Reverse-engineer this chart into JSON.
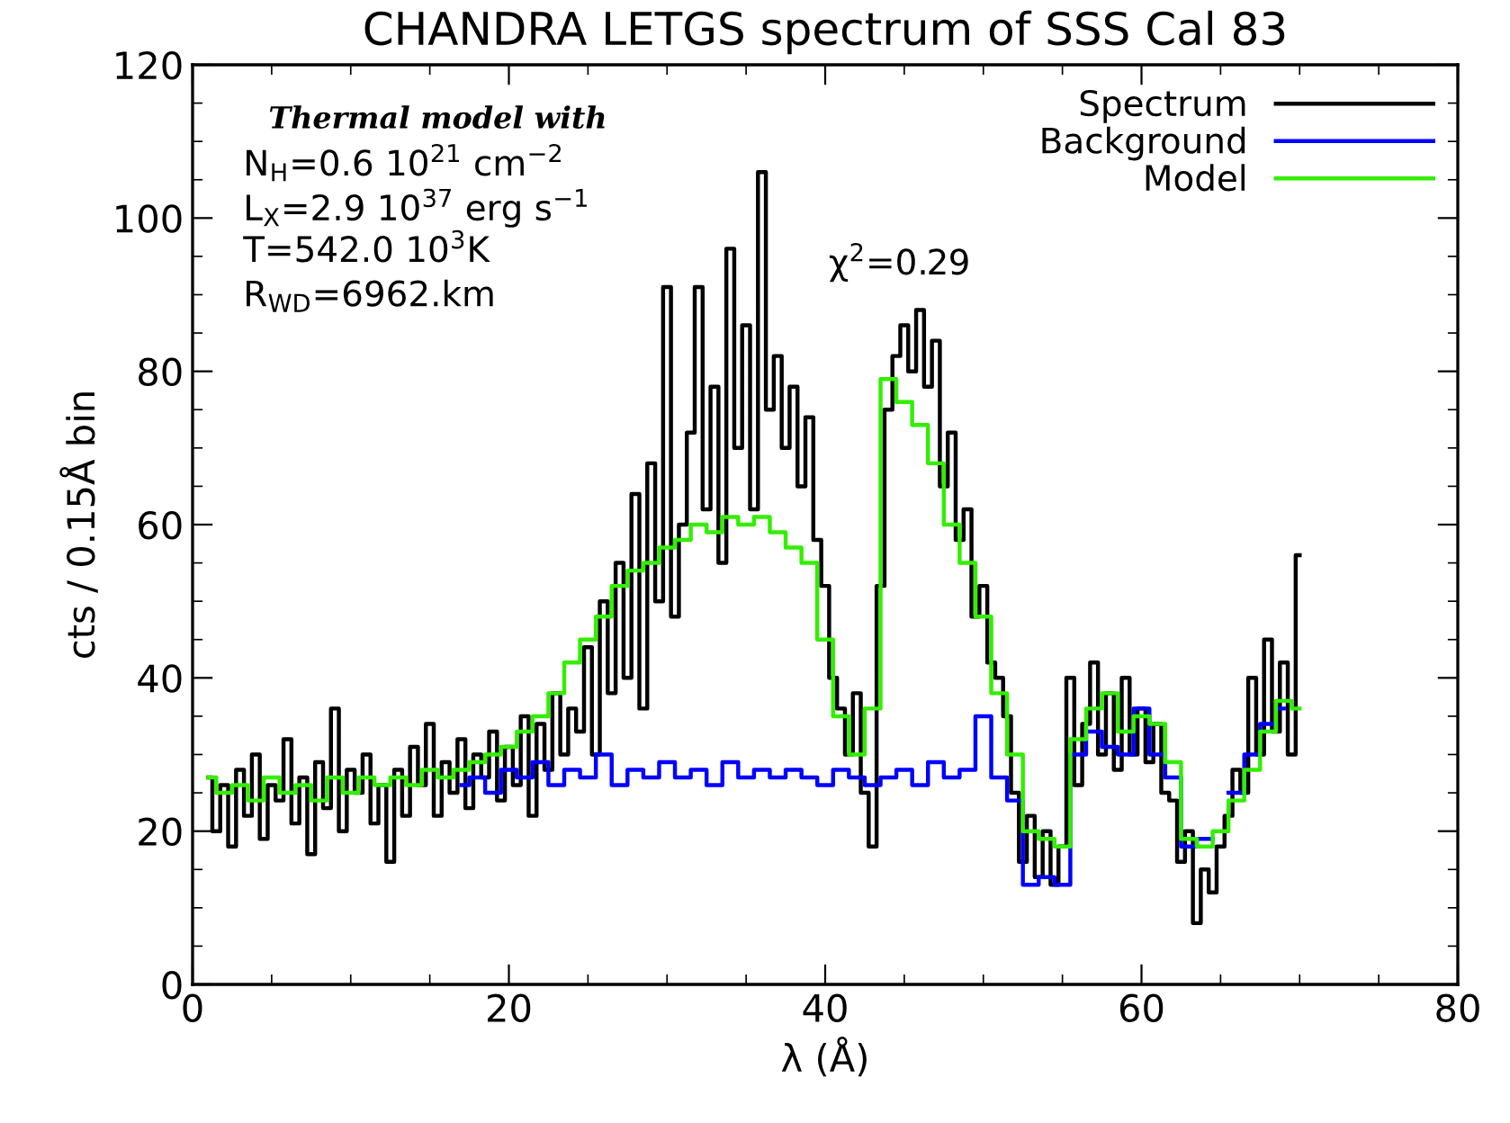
{
  "chart_data": {
    "type": "step",
    "title": "CHANDRA LETGS spectrum of SSS Cal 83",
    "xlabel": "λ (Å)",
    "ylabel": "cts / 0.15Å bin",
    "xlim": [
      0,
      80
    ],
    "xticks": [
      0,
      20,
      40,
      60,
      80
    ],
    "ylim": [
      0,
      120
    ],
    "yticks": [
      0,
      20,
      40,
      60,
      80,
      100,
      120
    ],
    "grid": false,
    "legend": "top right",
    "annotations": [
      "Thermal model with",
      "N$_{H}$=0.6 10$^{21}$ cm$^{−2}$",
      "L$_{X}$=2.9 10$^{37}$ erg s$^{−1}$",
      "T=542.0 10$^{3}$K",
      "R$_{WD}$=6962.km",
      "χ$^{2}$=0.29"
    ],
    "series": [
      {
        "name": "Spectrum",
        "color": "#000000",
        "x": [
          1.0,
          1.5,
          2.0,
          2.5,
          3.0,
          3.5,
          4.0,
          4.5,
          5.0,
          5.5,
          6.0,
          6.5,
          7.0,
          7.5,
          8.0,
          8.5,
          9.0,
          9.5,
          10.0,
          10.5,
          11.0,
          11.5,
          12.0,
          12.5,
          13.0,
          13.5,
          14.0,
          14.5,
          15.0,
          15.5,
          16.0,
          16.5,
          17.0,
          17.5,
          18.0,
          18.5,
          19.0,
          19.5,
          20.0,
          20.5,
          21.0,
          21.5,
          22.0,
          22.5,
          23.0,
          23.5,
          24.0,
          24.5,
          25.0,
          25.5,
          26.0,
          26.5,
          27.0,
          27.5,
          28.0,
          28.5,
          29.0,
          29.5,
          30.0,
          30.5,
          31.0,
          31.5,
          32.0,
          32.5,
          33.0,
          33.5,
          34.0,
          34.5,
          35.0,
          35.5,
          36.0,
          36.5,
          37.0,
          37.5,
          38.0,
          38.5,
          39.0,
          39.5,
          40.0,
          40.5,
          41.0,
          41.5,
          42.0,
          42.5,
          43.0,
          43.5,
          44.0,
          44.5,
          45.0,
          45.5,
          46.0,
          46.5,
          47.0,
          47.5,
          48.0,
          48.5,
          49.0,
          49.5,
          50.0,
          50.5,
          51.0,
          51.5,
          52.0,
          52.5,
          53.0,
          53.5,
          54.0,
          54.5,
          55.0,
          55.5,
          56.0,
          56.5,
          57.0,
          57.5,
          58.0,
          58.5,
          59.0,
          59.5,
          60.0,
          60.5,
          61.0,
          61.5,
          62.0,
          62.5,
          63.0,
          63.5,
          64.0,
          64.5,
          65.0,
          65.5,
          66.0,
          66.5,
          67.0,
          67.5,
          68.0,
          68.5,
          69.0,
          69.5,
          70.0
        ],
        "values": [
          27,
          20,
          26,
          18,
          28,
          22,
          30,
          19,
          26,
          24,
          32,
          21,
          27,
          17,
          29,
          23,
          36,
          20,
          28,
          25,
          30,
          21,
          26,
          16,
          28,
          22,
          31,
          26,
          34,
          22,
          29,
          25,
          32,
          23,
          30,
          27,
          33,
          24,
          31,
          26,
          35,
          22,
          34,
          28,
          38,
          30,
          36,
          33,
          44,
          30,
          50,
          38,
          55,
          40,
          64,
          36,
          68,
          50,
          91,
          48,
          60,
          72,
          91,
          62,
          78,
          55,
          96,
          70,
          86,
          62,
          106,
          75,
          82,
          70,
          78,
          65,
          74,
          58,
          52,
          40,
          36,
          30,
          38,
          25,
          18,
          52,
          75,
          82,
          86,
          80,
          88,
          78,
          84,
          65,
          72,
          58,
          62,
          48,
          52,
          42,
          40,
          35,
          25,
          16,
          22,
          14,
          20,
          13,
          18,
          40,
          26,
          34,
          42,
          30,
          38,
          28,
          40,
          30,
          36,
          29,
          34,
          25,
          24,
          16,
          20,
          8,
          15,
          12,
          18,
          22,
          28,
          25,
          40,
          30,
          45,
          33,
          42,
          30,
          56
        ]
      },
      {
        "name": "Background",
        "color": "#0000ff",
        "x": [
          17,
          18,
          19,
          20,
          21,
          22,
          23,
          24,
          25,
          26,
          27,
          28,
          29,
          30,
          31,
          32,
          33,
          34,
          35,
          36,
          37,
          38,
          39,
          40,
          41,
          42,
          43,
          44,
          45,
          46,
          47,
          48,
          49,
          50,
          51,
          52,
          53,
          54,
          55,
          56,
          57,
          58,
          59,
          60,
          61,
          62,
          63,
          64,
          65,
          66,
          67,
          68,
          69
        ],
        "values": [
          26,
          27,
          25,
          28,
          27,
          29,
          26,
          28,
          27,
          30,
          26,
          28,
          27,
          29,
          27,
          28,
          26,
          29,
          27,
          28,
          27,
          28,
          27,
          26,
          28,
          27,
          26,
          27,
          28,
          26,
          29,
          27,
          28,
          35,
          27,
          24,
          13,
          14,
          13,
          30,
          33,
          31,
          30,
          36,
          30,
          27,
          18,
          19,
          null,
          25,
          30,
          34,
          36
        ]
      },
      {
        "name": "Model",
        "color": "#33ee00",
        "x": [
          1,
          2,
          3,
          4,
          5,
          6,
          7,
          8,
          9,
          10,
          11,
          12,
          13,
          14,
          15,
          16,
          17,
          18,
          19,
          20,
          21,
          22,
          23,
          24,
          25,
          26,
          27,
          28,
          29,
          30,
          31,
          32,
          33,
          34,
          35,
          36,
          37,
          38,
          39,
          40,
          41,
          42,
          43,
          44,
          45,
          46,
          47,
          48,
          49,
          50,
          51,
          52,
          53,
          54,
          55,
          56,
          57,
          58,
          59,
          60,
          61,
          62,
          63,
          64,
          65,
          66,
          67,
          68,
          69,
          70
        ],
        "values": [
          27,
          25,
          26,
          24,
          27,
          25,
          26,
          24,
          27,
          25,
          27,
          26,
          27,
          26,
          28,
          27,
          28,
          29,
          30,
          31,
          33,
          35,
          38,
          42,
          45,
          48,
          52,
          54,
          55,
          57,
          58,
          60,
          59,
          61,
          60,
          61,
          59,
          57,
          55,
          45,
          35,
          30,
          36,
          79,
          76,
          73,
          68,
          60,
          55,
          48,
          38,
          30,
          20,
          19,
          18,
          32,
          36,
          38,
          33,
          35,
          34,
          29,
          19,
          18,
          20,
          24,
          28,
          33,
          37,
          36
        ]
      }
    ]
  }
}
